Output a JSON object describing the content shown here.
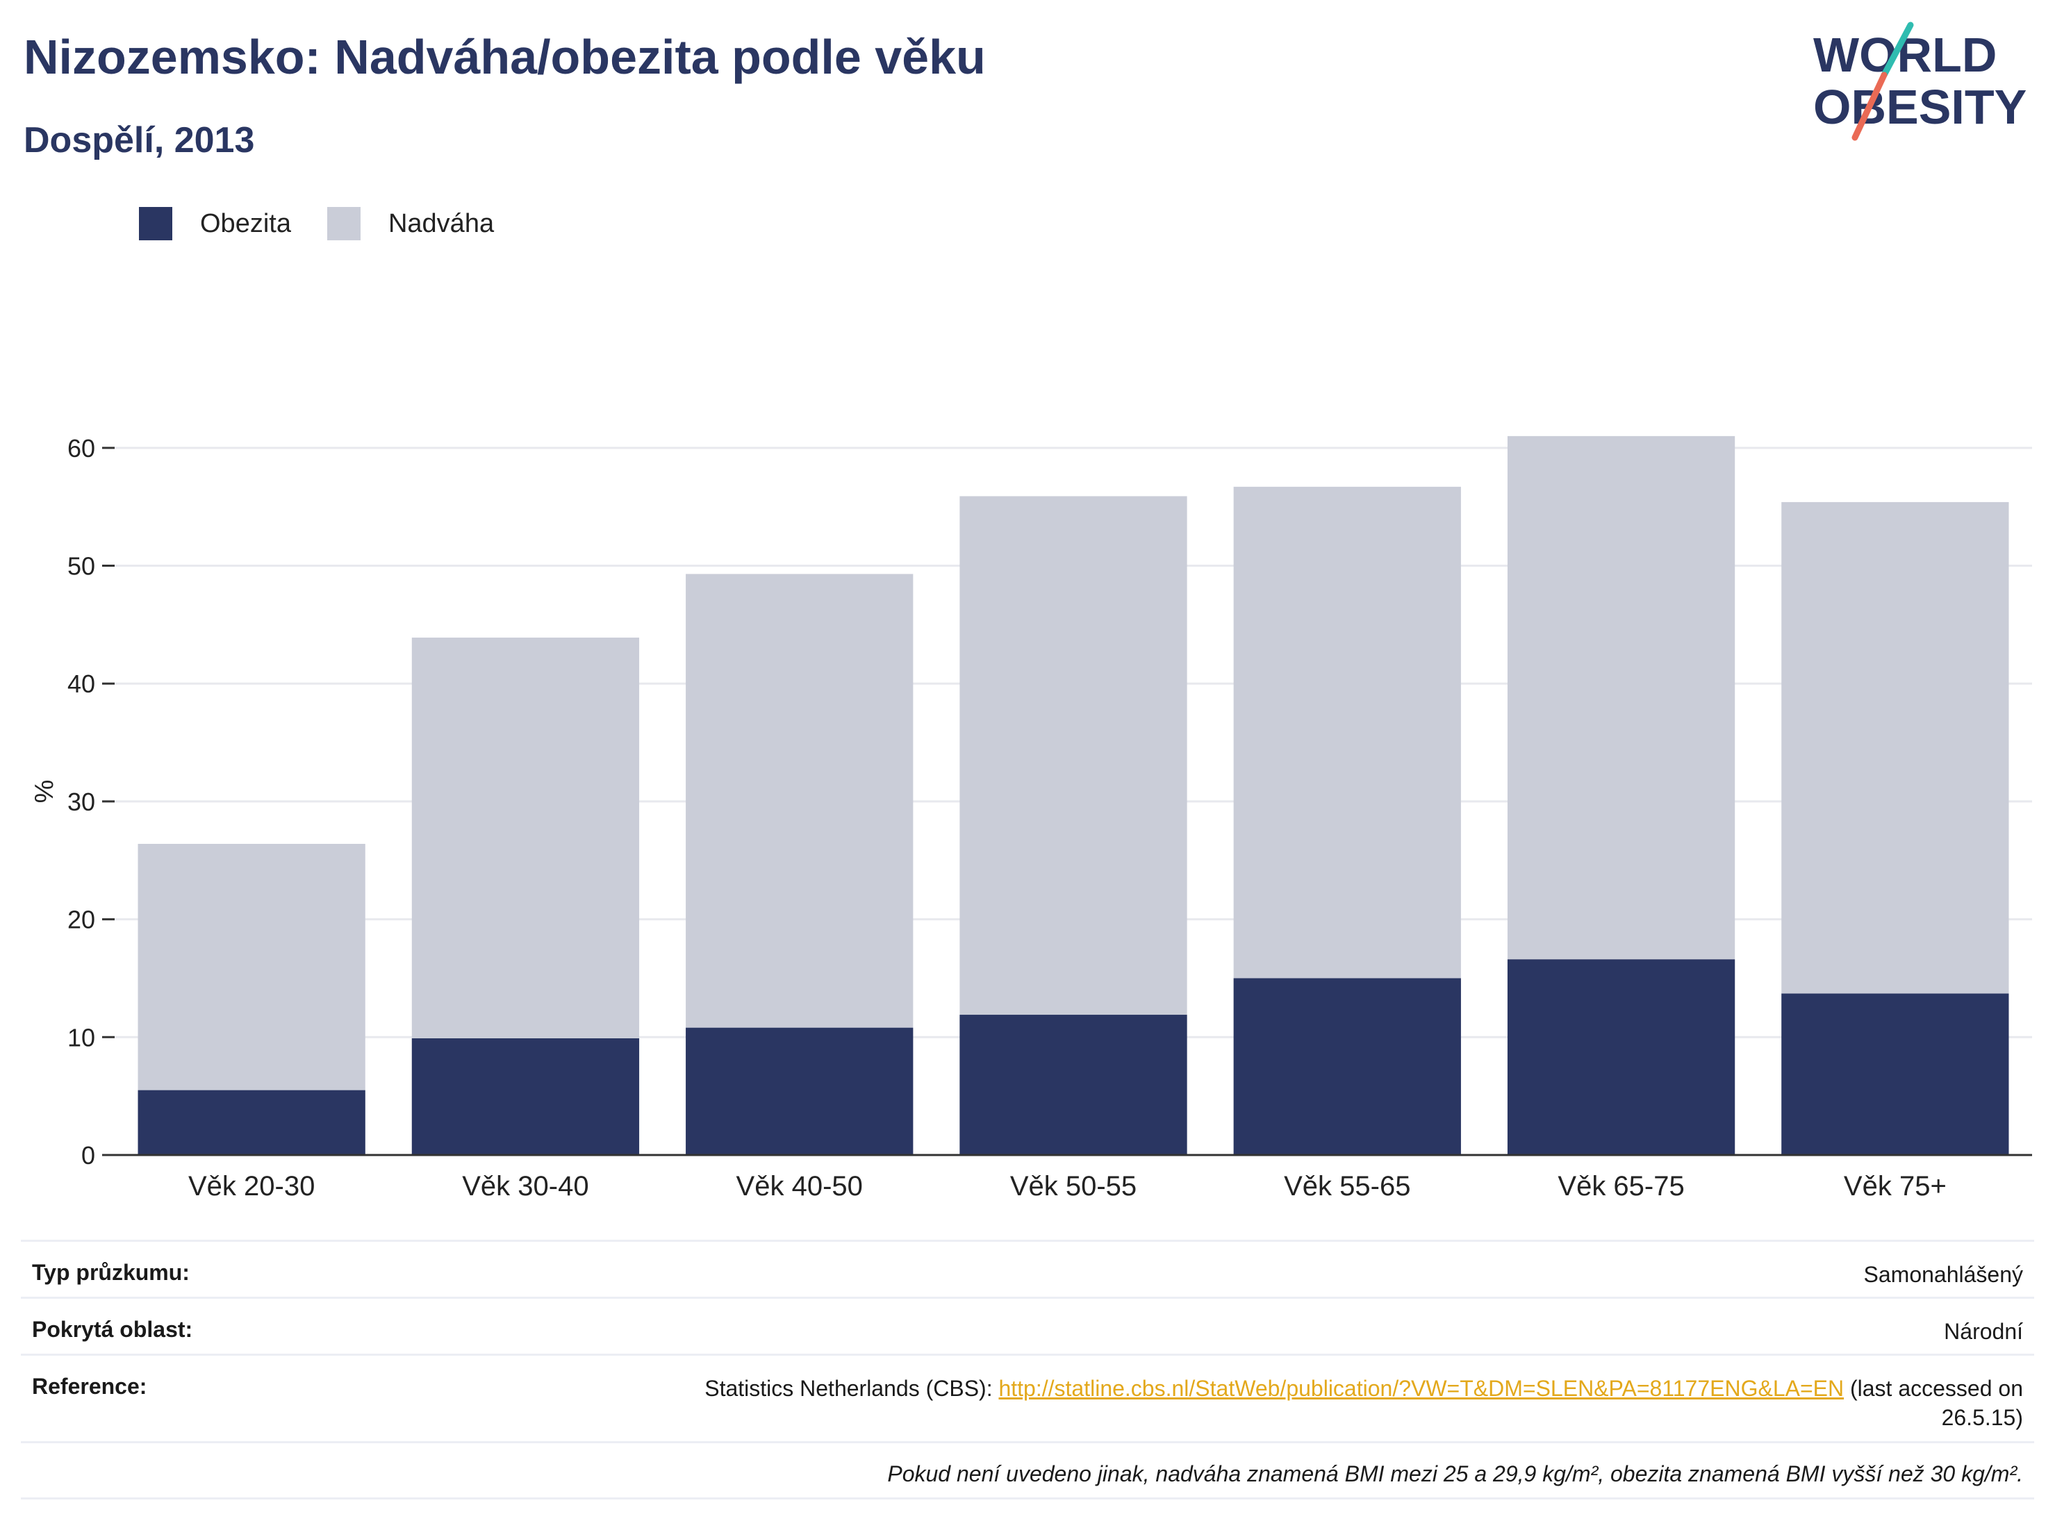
{
  "title": "Nizozemsko: Nadváha/obezita podle věku",
  "subtitle": "Dospělí, 2013",
  "logo": {
    "line1": "WORLD",
    "line2": "OBESITY"
  },
  "legend": [
    {
      "label": "Obezita",
      "color": "#2a3662"
    },
    {
      "label": "Nadváha",
      "color": "#cacdd8"
    }
  ],
  "chart_data": {
    "type": "bar",
    "stacked": "overlay",
    "categories": [
      "Věk 20-30",
      "Věk 30-40",
      "Věk 40-50",
      "Věk 50-55",
      "Věk 55-65",
      "Věk 65-75",
      "Věk 75+"
    ],
    "series": [
      {
        "name": "Obezita",
        "values": [
          5.5,
          9.9,
          10.8,
          11.9,
          15.0,
          16.6,
          13.7
        ],
        "color": "#2a3662"
      },
      {
        "name": "Nadváha",
        "values": [
          26.4,
          43.9,
          49.3,
          55.9,
          56.7,
          61.0,
          55.4
        ],
        "color": "#cacdd8"
      }
    ],
    "ylabel": "%",
    "ylim": [
      0,
      65
    ],
    "yticks": [
      0,
      10,
      20,
      30,
      40,
      50,
      60
    ],
    "grid": true,
    "legend_position": "top-left"
  },
  "info": {
    "survey_type_label": "Typ průzkumu:",
    "survey_type_value": "Samonahlášený",
    "coverage_label": "Pokrytá oblast:",
    "coverage_value": "Národní",
    "reference_label": "Reference:",
    "reference_prefix": "Statistics Netherlands (CBS): ",
    "reference_link": "http://statline.cbs.nl/StatWeb/publication/?VW=T&DM=SLEN&PA=81177ENG&LA=EN",
    "reference_suffix": " (last accessed on",
    "reference_suffix2": "26.5.15)",
    "note": "Pokud není uvedeno jinak, nadváha znamená BMI mezi 25 a 29,9 kg/m², obezita znamená BMI vyšší než 30 kg/m²."
  }
}
